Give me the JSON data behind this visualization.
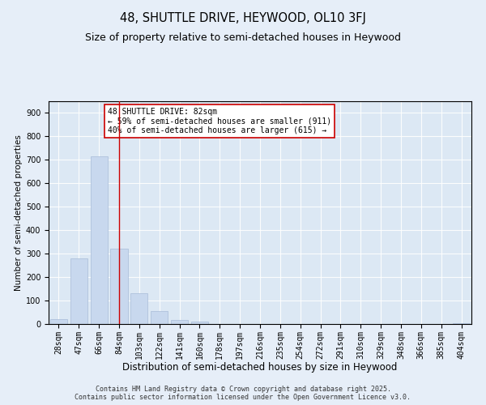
{
  "title": "48, SHUTTLE DRIVE, HEYWOOD, OL10 3FJ",
  "subtitle": "Size of property relative to semi-detached houses in Heywood",
  "xlabel": "Distribution of semi-detached houses by size in Heywood",
  "ylabel": "Number of semi-detached properties",
  "categories": [
    "28sqm",
    "47sqm",
    "66sqm",
    "84sqm",
    "103sqm",
    "122sqm",
    "141sqm",
    "160sqm",
    "178sqm",
    "197sqm",
    "216sqm",
    "235sqm",
    "254sqm",
    "272sqm",
    "291sqm",
    "310sqm",
    "329sqm",
    "348sqm",
    "366sqm",
    "385sqm",
    "404sqm"
  ],
  "values": [
    20,
    280,
    715,
    320,
    130,
    55,
    18,
    12,
    0,
    0,
    0,
    0,
    0,
    0,
    0,
    0,
    0,
    0,
    0,
    0,
    5
  ],
  "bar_color": "#c8d8ee",
  "bar_edge_color": "#a8bcd8",
  "vline_x": 3,
  "vline_color": "#cc0000",
  "annotation_text": "48 SHUTTLE DRIVE: 82sqm\n← 59% of semi-detached houses are smaller (911)\n40% of semi-detached houses are larger (615) →",
  "annotation_box_color": "#ffffff",
  "annotation_box_edgecolor": "#cc0000",
  "ylim": [
    0,
    950
  ],
  "yticks": [
    0,
    100,
    200,
    300,
    400,
    500,
    600,
    700,
    800,
    900
  ],
  "background_color": "#e6eef8",
  "plot_background_color": "#dce8f4",
  "footer_text": "Contains HM Land Registry data © Crown copyright and database right 2025.\nContains public sector information licensed under the Open Government Licence v3.0.",
  "title_fontsize": 10.5,
  "subtitle_fontsize": 9,
  "xlabel_fontsize": 8.5,
  "ylabel_fontsize": 7.5,
  "tick_fontsize": 7,
  "annotation_fontsize": 7,
  "footer_fontsize": 6
}
